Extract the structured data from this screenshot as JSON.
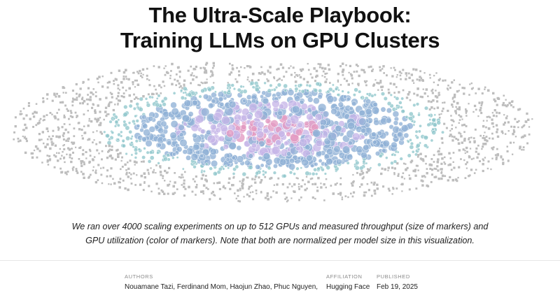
{
  "title": {
    "line1": "The Ultra-Scale Playbook:",
    "line2": "Training LLMs on GPU Clusters"
  },
  "caption": "We ran over 4000 scaling experiments on up to 512 GPUs and measured throughput (size of markers) and GPU utilization (color of markers). Note that both are normalized per model size in this visualization.",
  "meta": {
    "authors_label": "AUTHORS",
    "authors_value": "Nouamane Tazi, Ferdinand Mom, Haojun Zhao, Phuc Nguyen,",
    "affiliation_label": "AFFILIATION",
    "affiliation_value": "Hugging Face",
    "published_label": "PUBLISHED",
    "published_value": "Feb 19, 2025"
  },
  "colors": {
    "low": "#bdbdbd",
    "teal": "#8fc6cc",
    "blue": "#8fb1d6",
    "lavender": "#c6b6e8",
    "pink": "#e39ac2"
  }
}
